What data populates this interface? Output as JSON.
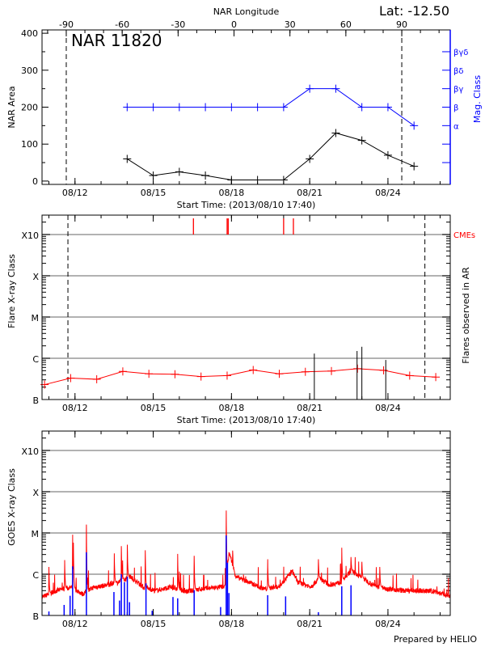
{
  "title": "NAR 11820",
  "latitude_label": "Lat: -12.50",
  "footer": "Prepared by HELIO",
  "colors": {
    "blue": "#0000ff",
    "red": "#ff0000",
    "grid": "#999999",
    "black": "#000000"
  },
  "chart_data": [
    {
      "type": "line",
      "xlabel": "Start Time: (2013/08/10 17:40)",
      "ylabel": "NAR Area",
      "y2label": "Mag. Class",
      "xlim": [
        "2013-08-10 17:40",
        "2013-08-26 09:20"
      ],
      "ylim": [
        -9,
        409
      ],
      "yticks": [
        0,
        100,
        200,
        300,
        400
      ],
      "xticks": [
        {
          "date": "2013-08-12 00:00",
          "label": "08/12"
        },
        {
          "date": "2013-08-15 00:00",
          "label": "08/15"
        },
        {
          "date": "2013-08-18 00:00",
          "label": "08/18"
        },
        {
          "date": "2013-08-21 00:00",
          "label": "08/21"
        },
        {
          "date": "2013-08-24 00:00",
          "label": "08/24"
        }
      ],
      "top_axis": {
        "label": "NAR Longitude",
        "range": [
          -103,
          116
        ],
        "ticks": [
          -90,
          -60,
          -30,
          0,
          30,
          60,
          90
        ]
      },
      "dashed_longitudes": [
        -90,
        90
      ],
      "y2ticks": [
        {
          "value": 50,
          "label": ""
        },
        {
          "value": 100,
          "label": ""
        },
        {
          "value": 150,
          "label": "α"
        },
        {
          "value": 200,
          "label": "β"
        },
        {
          "value": 250,
          "label": "βγ"
        },
        {
          "value": 300,
          "label": "βδ"
        },
        {
          "value": 350,
          "label": "βγδ"
        }
      ],
      "area_series": {
        "color": "#000000",
        "points": [
          [
            "2013-08-14 00:00",
            60
          ],
          [
            "2013-08-15 00:00",
            15
          ],
          [
            "2013-08-16 00:00",
            25
          ],
          [
            "2013-08-17 00:00",
            15
          ],
          [
            "2013-08-18 00:00",
            3
          ],
          [
            "2013-08-19 00:00",
            3
          ],
          [
            "2013-08-20 00:00",
            3
          ],
          [
            "2013-08-21 00:00",
            60
          ],
          [
            "2013-08-22 00:00",
            130
          ],
          [
            "2013-08-23 00:00",
            110
          ],
          [
            "2013-08-24 00:00",
            70
          ],
          [
            "2013-08-25 00:00",
            40
          ]
        ]
      },
      "mag_class_series": {
        "color": "#0000ff",
        "points": [
          [
            "2013-08-14 00:00",
            "β"
          ],
          [
            "2013-08-15 00:00",
            "β"
          ],
          [
            "2013-08-16 00:00",
            "β"
          ],
          [
            "2013-08-17 00:00",
            "β"
          ],
          [
            "2013-08-18 00:00",
            "β"
          ],
          [
            "2013-08-19 00:00",
            "β"
          ],
          [
            "2013-08-20 00:00",
            "β"
          ],
          [
            "2013-08-21 00:00",
            "βγ"
          ],
          [
            "2013-08-22 00:00",
            "βγ"
          ],
          [
            "2013-08-23 00:00",
            "β"
          ],
          [
            "2013-08-24 00:00",
            "β"
          ],
          [
            "2013-08-25 00:00",
            "α"
          ]
        ]
      }
    },
    {
      "type": "line",
      "xlabel": "Start Time: (2013/08/10 17:40)",
      "ylabel": "Flare X-ray Class",
      "y2label": "Flares observed in AR",
      "cme_label": "CMEs",
      "yscale": "log",
      "xlim": [
        "2013-08-10 17:40",
        "2013-08-26 09:20"
      ],
      "ylim": [
        1e-07,
        0.00295
      ],
      "yticks": [
        {
          "value": 1e-07,
          "label": "B"
        },
        {
          "value": 1e-06,
          "label": "C"
        },
        {
          "value": 1e-05,
          "label": "M"
        },
        {
          "value": 0.0001,
          "label": "X"
        },
        {
          "value": 0.001,
          "label": "X10"
        }
      ],
      "xticks": [
        {
          "date": "2013-08-12 00:00",
          "label": "08/12"
        },
        {
          "date": "2013-08-15 00:00",
          "label": "08/15"
        },
        {
          "date": "2013-08-18 00:00",
          "label": "08/18"
        },
        {
          "date": "2013-08-21 00:00",
          "label": "08/21"
        },
        {
          "date": "2013-08-24 00:00",
          "label": "08/24"
        }
      ],
      "dashed_dates": [
        "2013-08-11 17:30",
        "2013-08-25 10:00"
      ],
      "background_series": {
        "color": "#ff0000",
        "points": [
          [
            "2013-08-10 20:00",
            2.3e-07
          ],
          [
            "2013-08-11 20:00",
            3.3e-07
          ],
          [
            "2013-08-12 20:00",
            3.1e-07
          ],
          [
            "2013-08-13 20:00",
            4.8e-07
          ],
          [
            "2013-08-14 20:00",
            4.2e-07
          ],
          [
            "2013-08-15 20:00",
            4.1e-07
          ],
          [
            "2013-08-16 20:00",
            3.6e-07
          ],
          [
            "2013-08-17 20:00",
            3.8e-07
          ],
          [
            "2013-08-18 20:00",
            5.2e-07
          ],
          [
            "2013-08-19 20:00",
            4.2e-07
          ],
          [
            "2013-08-20 20:00",
            4.7e-07
          ],
          [
            "2013-08-21 20:00",
            4.9e-07
          ],
          [
            "2013-08-22 20:00",
            5.6e-07
          ],
          [
            "2013-08-23 20:00",
            5.1e-07
          ],
          [
            "2013-08-24 20:00",
            3.8e-07
          ],
          [
            "2013-08-25 20:00",
            3.5e-07
          ]
        ]
      },
      "flares": [
        [
          "2013-08-21 04:15",
          1.3e-06
        ],
        [
          "2013-08-22 19:35",
          1.5e-06
        ],
        [
          "2013-08-23 00:00",
          1.9e-06
        ],
        [
          "2013-08-23 22:00",
          9.1e-07
        ]
      ],
      "cmes": [
        "2013-08-16 13:00",
        "2013-08-17 20:00",
        "2013-08-17 21:00",
        "2013-08-20 00:00",
        "2013-08-20 09:00"
      ]
    },
    {
      "type": "line",
      "ylabel": "GOES X-ray Class",
      "yscale": "log",
      "xlim": [
        "2013-08-10 17:40",
        "2013-08-26 09:20"
      ],
      "ylim": [
        1e-07,
        0.00295
      ],
      "yticks": [
        {
          "value": 1e-07,
          "label": "B"
        },
        {
          "value": 1e-06,
          "label": "C"
        },
        {
          "value": 1e-05,
          "label": "M"
        },
        {
          "value": 0.0001,
          "label": "X"
        },
        {
          "value": 0.001,
          "label": "X10"
        }
      ],
      "xticks": [
        {
          "date": "2013-08-12 00:00",
          "label": "08/12"
        },
        {
          "date": "2013-08-15 00:00",
          "label": "08/15"
        },
        {
          "date": "2013-08-18 00:00",
          "label": "08/18"
        },
        {
          "date": "2013-08-21 00:00",
          "label": "08/21"
        },
        {
          "date": "2013-08-24 00:00",
          "label": "08/24"
        }
      ],
      "red_series": {
        "color": "#ff0000",
        "baseline": [
          [
            "2013-08-10 18:00",
            2.8e-07
          ],
          [
            "2013-08-11 07:00",
            4e-07
          ],
          [
            "2013-08-11 21:00",
            4.8e-07
          ],
          [
            "2013-08-12 07:00",
            3.3e-07
          ],
          [
            "2013-08-12 17:00",
            4.8e-07
          ],
          [
            "2013-08-13 07:00",
            5.5e-07
          ],
          [
            "2013-08-13 16:00",
            6.4e-07
          ],
          [
            "2013-08-14 03:00",
            8.7e-07
          ],
          [
            "2013-08-14 15:00",
            4.8e-07
          ],
          [
            "2013-08-15 02:00",
            4e-07
          ],
          [
            "2013-08-15 16:00",
            4.8e-07
          ],
          [
            "2013-08-16 07:00",
            3.8e-07
          ],
          [
            "2013-08-16 21:00",
            4.4e-07
          ],
          [
            "2013-08-17 11:00",
            4.8e-07
          ],
          [
            "2013-08-17 18:00",
            5e-07
          ],
          [
            "2013-08-17 22:00",
            3.4e-06
          ],
          [
            "2013-08-18 04:00",
            8.7e-07
          ],
          [
            "2013-08-18 16:00",
            6.4e-07
          ],
          [
            "2013-08-19 06:00",
            4.4e-07
          ],
          [
            "2013-08-19 20:00",
            5e-07
          ],
          [
            "2013-08-20 08:00",
            1.2e-06
          ],
          [
            "2013-08-20 13:00",
            6.4e-07
          ],
          [
            "2013-08-21 01:00",
            5e-07
          ],
          [
            "2013-08-21 09:00",
            8e-07
          ],
          [
            "2013-08-21 18:00",
            5.5e-07
          ],
          [
            "2013-08-22 05:00",
            6.4e-07
          ],
          [
            "2013-08-22 14:00",
            1.2e-06
          ],
          [
            "2013-08-23 01:00",
            8e-07
          ],
          [
            "2013-08-23 10:00",
            5.5e-07
          ],
          [
            "2013-08-24 00:00",
            4.4e-07
          ],
          [
            "2013-08-24 14:00",
            4e-07
          ],
          [
            "2013-08-25 05:00",
            4e-07
          ],
          [
            "2013-08-25 19:00",
            3.8e-07
          ],
          [
            "2013-08-26 09:00",
            2.9e-07
          ]
        ],
        "peaks": [
          [
            "2013-08-11 00:00",
            1.5e-06
          ],
          [
            "2013-08-11 14:30",
            2.2e-06
          ],
          [
            "2013-08-11 21:50",
            9.1e-06
          ],
          [
            "2013-08-11 22:30",
            5.8e-06
          ],
          [
            "2013-08-12 10:30",
            1.6e-05
          ],
          [
            "2013-08-13 12:10",
            3.2e-06
          ],
          [
            "2013-08-13 18:40",
            4.8e-06
          ],
          [
            "2013-08-14 00:10",
            5.2e-06
          ],
          [
            "2013-08-14 16:40",
            3.8e-06
          ],
          [
            "2013-08-15 22:30",
            3.1e-06
          ],
          [
            "2013-08-16 13:40",
            2.8e-06
          ],
          [
            "2013-08-17 19:10",
            3.5e-05
          ],
          [
            "2013-08-19 09:20",
            2.3e-06
          ],
          [
            "2013-08-21 08:00",
            2.3e-06
          ],
          [
            "2013-08-22 05:30",
            4.4e-06
          ],
          [
            "2013-08-22 14:00",
            2.6e-06
          ],
          [
            "2013-08-23 00:00",
            2e-06
          ],
          [
            "2013-08-23 16:30",
            1.5e-06
          ]
        ]
      },
      "blue_series": {
        "color": "#0000ff",
        "peaks": [
          [
            "2013-08-11 00:00",
            1.25e-07
          ],
          [
            "2013-08-11 14:00",
            1.8e-07
          ],
          [
            "2013-08-11 19:30",
            3e-07
          ],
          [
            "2013-08-11 21:50",
            1.55e-06
          ],
          [
            "2013-08-12 10:30",
            3.4e-06
          ],
          [
            "2013-08-13 11:50",
            3.7e-07
          ],
          [
            "2013-08-13 17:00",
            2.3e-07
          ],
          [
            "2013-08-13 18:40",
            1e-06
          ],
          [
            "2013-08-13 21:30",
            6.4e-07
          ],
          [
            "2013-08-14 00:10",
            8.7e-07
          ],
          [
            "2013-08-14 02:10",
            2.1e-07
          ],
          [
            "2013-08-14 17:20",
            6e-07
          ],
          [
            "2013-08-14 23:00",
            1.3e-07
          ],
          [
            "2013-08-15 18:10",
            2.8e-07
          ],
          [
            "2013-08-15 22:30",
            2.6e-07
          ],
          [
            "2013-08-16 13:40",
            4.1e-07
          ],
          [
            "2013-08-17 14:00",
            1.6e-07
          ],
          [
            "2013-08-17 19:10",
            8.7e-06
          ],
          [
            "2013-08-17 20:20",
            1.9e-06
          ],
          [
            "2013-08-17 21:40",
            3.5e-07
          ],
          [
            "2013-08-19 09:20",
            3.1e-07
          ],
          [
            "2013-08-20 01:50",
            2.9e-07
          ],
          [
            "2013-08-21 08:00",
            1.2e-07
          ],
          [
            "2013-08-22 05:30",
            5.1e-07
          ],
          [
            "2013-08-22 14:00",
            5.4e-07
          ]
        ]
      }
    }
  ]
}
